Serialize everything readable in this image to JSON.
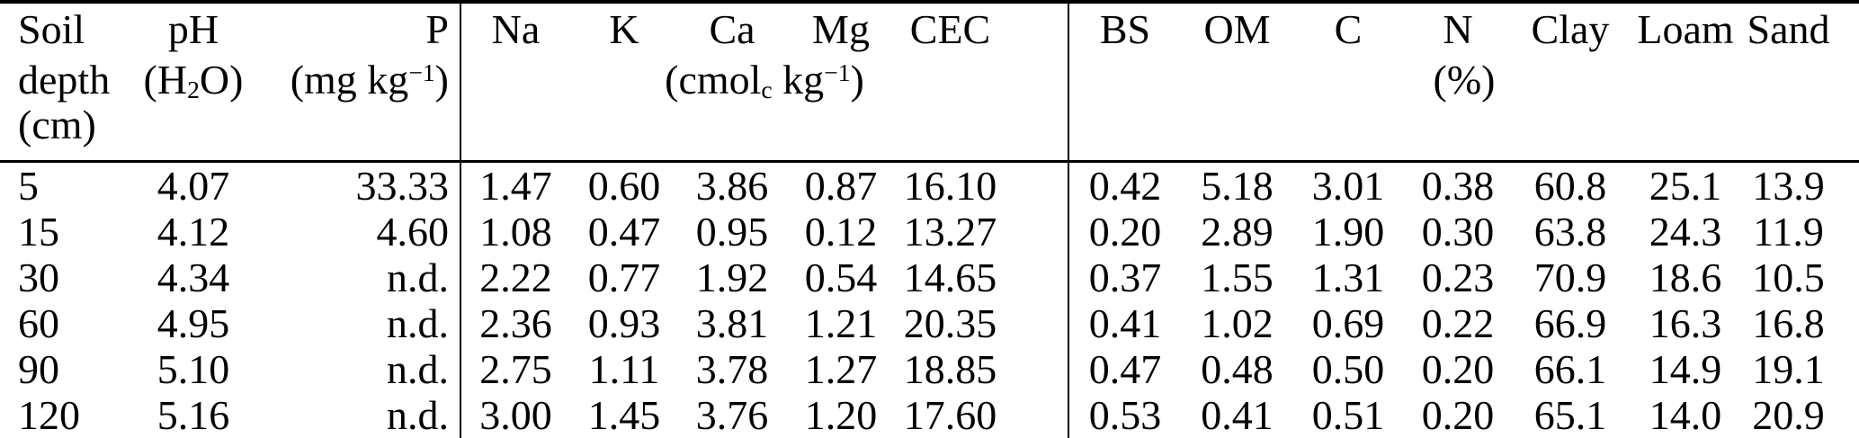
{
  "page": {
    "background_color": "#ffffff",
    "text_color": "#000000",
    "rule_color": "#000000"
  },
  "table": {
    "header": {
      "depth": {
        "line1": "Soil",
        "line2": "depth",
        "line3": "(cm)"
      },
      "ph": {
        "line1": "pH",
        "line2": "(H~2~O)"
      },
      "p": {
        "line1": "P",
        "line2": "(mg kg^−1^)"
      },
      "exchangeable": {
        "columns": [
          "Na",
          "K",
          "Ca",
          "Mg",
          "CEC"
        ],
        "unit": "(cmol~c~ kg^−1^)"
      },
      "composition": {
        "columns": [
          "BS",
          "OM",
          "C",
          "N",
          "Clay",
          "Loam",
          "Sand"
        ],
        "unit": "(%)"
      }
    },
    "rows": [
      [
        "5",
        "4.07",
        "33.33",
        "1.47",
        "0.60",
        "3.86",
        "0.87",
        "16.10",
        "0.42",
        "5.18",
        "3.01",
        "0.38",
        "60.8",
        "25.1",
        "13.9"
      ],
      [
        "15",
        "4.12",
        "4.60",
        "1.08",
        "0.47",
        "0.95",
        "0.12",
        "13.27",
        "0.20",
        "2.89",
        "1.90",
        "0.30",
        "63.8",
        "24.3",
        "11.9"
      ],
      [
        "30",
        "4.34",
        "n.d.",
        "2.22",
        "0.77",
        "1.92",
        "0.54",
        "14.65",
        "0.37",
        "1.55",
        "1.31",
        "0.23",
        "70.9",
        "18.6",
        "10.5"
      ],
      [
        "60",
        "4.95",
        "n.d.",
        "2.36",
        "0.93",
        "3.81",
        "1.21",
        "20.35",
        "0.41",
        "1.02",
        "0.69",
        "0.22",
        "66.9",
        "16.3",
        "16.8"
      ],
      [
        "90",
        "5.10",
        "n.d.",
        "2.75",
        "1.11",
        "3.78",
        "1.27",
        "18.85",
        "0.47",
        "0.48",
        "0.50",
        "0.20",
        "66.1",
        "14.9",
        "19.1"
      ],
      [
        "120",
        "5.16",
        "n.d.",
        "3.00",
        "1.45",
        "3.76",
        "1.20",
        "17.60",
        "0.53",
        "0.41",
        "0.51",
        "0.20",
        "65.1",
        "14.0",
        "20.9"
      ]
    ]
  }
}
